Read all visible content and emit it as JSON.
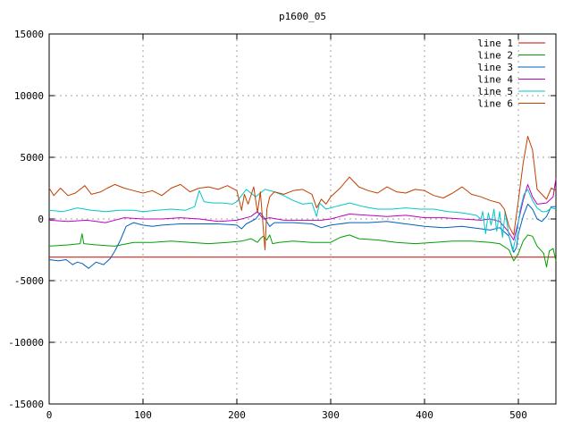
{
  "chart_data": {
    "type": "line",
    "title": "p1600_05",
    "xlabel": "",
    "ylabel": "",
    "xlim": [
      0,
      540
    ],
    "ylim": [
      -15000,
      15000
    ],
    "xticks": [
      0,
      100,
      200,
      300,
      400,
      500
    ],
    "yticks": [
      -15000,
      -10000,
      -5000,
      0,
      5000,
      10000,
      15000
    ],
    "grid": true,
    "legend_position": "top-right",
    "series": [
      {
        "name": "line 1",
        "color": "#d00000",
        "points": [
          [
            0,
            -3100
          ],
          [
            540,
            -3100
          ]
        ]
      },
      {
        "name": "line 2",
        "color": "#00a000",
        "points": [
          [
            0,
            -2200
          ],
          [
            20,
            -2100
          ],
          [
            33,
            -2000
          ],
          [
            35,
            -1200
          ],
          [
            37,
            -2000
          ],
          [
            50,
            -2100
          ],
          [
            70,
            -2200
          ],
          [
            90,
            -1900
          ],
          [
            110,
            -1900
          ],
          [
            130,
            -1800
          ],
          [
            150,
            -1900
          ],
          [
            170,
            -2000
          ],
          [
            190,
            -1900
          ],
          [
            205,
            -1800
          ],
          [
            215,
            -1600
          ],
          [
            222,
            -1900
          ],
          [
            225,
            -1600
          ],
          [
            228,
            -1400
          ],
          [
            232,
            -1700
          ],
          [
            235,
            -1300
          ],
          [
            238,
            -2000
          ],
          [
            245,
            -1900
          ],
          [
            260,
            -1800
          ],
          [
            280,
            -1900
          ],
          [
            300,
            -1900
          ],
          [
            310,
            -1500
          ],
          [
            320,
            -1300
          ],
          [
            330,
            -1600
          ],
          [
            350,
            -1700
          ],
          [
            370,
            -1900
          ],
          [
            390,
            -2000
          ],
          [
            410,
            -1900
          ],
          [
            430,
            -1800
          ],
          [
            450,
            -1800
          ],
          [
            470,
            -1900
          ],
          [
            480,
            -2000
          ],
          [
            490,
            -2500
          ],
          [
            495,
            -3400
          ],
          [
            500,
            -2800
          ],
          [
            505,
            -1800
          ],
          [
            510,
            -1300
          ],
          [
            515,
            -1400
          ],
          [
            520,
            -2200
          ],
          [
            527,
            -2800
          ],
          [
            530,
            -3900
          ],
          [
            533,
            -2600
          ],
          [
            537,
            -2400
          ],
          [
            540,
            -3400
          ]
        ]
      },
      {
        "name": "line 3",
        "color": "#0060c0",
        "points": [
          [
            0,
            -3300
          ],
          [
            10,
            -3400
          ],
          [
            18,
            -3300
          ],
          [
            25,
            -3700
          ],
          [
            30,
            -3500
          ],
          [
            35,
            -3600
          ],
          [
            42,
            -4000
          ],
          [
            50,
            -3500
          ],
          [
            58,
            -3700
          ],
          [
            65,
            -3200
          ],
          [
            70,
            -2600
          ],
          [
            76,
            -1700
          ],
          [
            82,
            -600
          ],
          [
            90,
            -300
          ],
          [
            100,
            -500
          ],
          [
            110,
            -600
          ],
          [
            120,
            -500
          ],
          [
            140,
            -400
          ],
          [
            160,
            -400
          ],
          [
            180,
            -400
          ],
          [
            200,
            -500
          ],
          [
            205,
            -800
          ],
          [
            210,
            -400
          ],
          [
            220,
            0
          ],
          [
            225,
            500
          ],
          [
            230,
            0
          ],
          [
            235,
            -600
          ],
          [
            240,
            -300
          ],
          [
            260,
            -300
          ],
          [
            280,
            -400
          ],
          [
            290,
            -700
          ],
          [
            300,
            -500
          ],
          [
            320,
            -300
          ],
          [
            340,
            -300
          ],
          [
            360,
            -200
          ],
          [
            380,
            -400
          ],
          [
            400,
            -600
          ],
          [
            420,
            -700
          ],
          [
            440,
            -600
          ],
          [
            460,
            -800
          ],
          [
            470,
            -900
          ],
          [
            480,
            -700
          ],
          [
            490,
            -1400
          ],
          [
            495,
            -2700
          ],
          [
            498,
            -2300
          ],
          [
            500,
            -1200
          ],
          [
            505,
            200
          ],
          [
            510,
            1200
          ],
          [
            515,
            800
          ],
          [
            520,
            0
          ],
          [
            525,
            -200
          ],
          [
            530,
            200
          ],
          [
            535,
            1000
          ],
          [
            540,
            1000
          ]
        ]
      },
      {
        "name": "line 4",
        "color": "#c000c0",
        "points": [
          [
            0,
            -100
          ],
          [
            20,
            -200
          ],
          [
            40,
            -100
          ],
          [
            60,
            -300
          ],
          [
            80,
            100
          ],
          [
            100,
            0
          ],
          [
            120,
            0
          ],
          [
            140,
            100
          ],
          [
            160,
            0
          ],
          [
            180,
            -200
          ],
          [
            200,
            -100
          ],
          [
            215,
            200
          ],
          [
            222,
            600
          ],
          [
            228,
            0
          ],
          [
            235,
            100
          ],
          [
            250,
            -100
          ],
          [
            270,
            -100
          ],
          [
            290,
            -100
          ],
          [
            300,
            0
          ],
          [
            310,
            200
          ],
          [
            320,
            400
          ],
          [
            340,
            300
          ],
          [
            360,
            200
          ],
          [
            380,
            300
          ],
          [
            400,
            100
          ],
          [
            420,
            100
          ],
          [
            440,
            0
          ],
          [
            460,
            -100
          ],
          [
            470,
            0
          ],
          [
            480,
            -200
          ],
          [
            488,
            -900
          ],
          [
            495,
            -1700
          ],
          [
            500,
            -200
          ],
          [
            505,
            1500
          ],
          [
            510,
            2800
          ],
          [
            515,
            1800
          ],
          [
            520,
            1200
          ],
          [
            530,
            1300
          ],
          [
            537,
            1800
          ],
          [
            540,
            3300
          ]
        ]
      },
      {
        "name": "line 5",
        "color": "#00c8c8",
        "points": [
          [
            0,
            700
          ],
          [
            15,
            600
          ],
          [
            30,
            900
          ],
          [
            45,
            700
          ],
          [
            60,
            600
          ],
          [
            75,
            700
          ],
          [
            90,
            700
          ],
          [
            100,
            600
          ],
          [
            115,
            700
          ],
          [
            130,
            800
          ],
          [
            145,
            700
          ],
          [
            155,
            1000
          ],
          [
            160,
            2300
          ],
          [
            165,
            1400
          ],
          [
            175,
            1300
          ],
          [
            185,
            1300
          ],
          [
            195,
            1200
          ],
          [
            200,
            1400
          ],
          [
            210,
            2400
          ],
          [
            220,
            1800
          ],
          [
            230,
            2400
          ],
          [
            240,
            2200
          ],
          [
            250,
            1900
          ],
          [
            260,
            1500
          ],
          [
            270,
            1200
          ],
          [
            280,
            1300
          ],
          [
            285,
            200
          ],
          [
            288,
            1300
          ],
          [
            295,
            800
          ],
          [
            305,
            1000
          ],
          [
            320,
            1300
          ],
          [
            335,
            1000
          ],
          [
            350,
            800
          ],
          [
            365,
            800
          ],
          [
            380,
            900
          ],
          [
            395,
            800
          ],
          [
            410,
            800
          ],
          [
            425,
            600
          ],
          [
            440,
            500
          ],
          [
            455,
            300
          ],
          [
            460,
            0
          ],
          [
            462,
            600
          ],
          [
            465,
            -1200
          ],
          [
            468,
            500
          ],
          [
            471,
            -500
          ],
          [
            474,
            800
          ],
          [
            477,
            -1000
          ],
          [
            480,
            600
          ],
          [
            483,
            -1500
          ],
          [
            486,
            600
          ],
          [
            490,
            -1400
          ],
          [
            494,
            -2600
          ],
          [
            498,
            -1300
          ],
          [
            502,
            800
          ],
          [
            506,
            2000
          ],
          [
            510,
            2400
          ],
          [
            515,
            1500
          ],
          [
            520,
            900
          ],
          [
            525,
            600
          ],
          [
            530,
            600
          ],
          [
            535,
            900
          ],
          [
            540,
            800
          ]
        ]
      },
      {
        "name": "line 6",
        "color": "#c04000",
        "points": [
          [
            0,
            2500
          ],
          [
            5,
            1900
          ],
          [
            12,
            2500
          ],
          [
            20,
            1900
          ],
          [
            28,
            2100
          ],
          [
            38,
            2700
          ],
          [
            45,
            2000
          ],
          [
            55,
            2200
          ],
          [
            62,
            2500
          ],
          [
            70,
            2800
          ],
          [
            80,
            2500
          ],
          [
            90,
            2300
          ],
          [
            100,
            2100
          ],
          [
            110,
            2300
          ],
          [
            120,
            1900
          ],
          [
            130,
            2500
          ],
          [
            140,
            2800
          ],
          [
            150,
            2200
          ],
          [
            160,
            2500
          ],
          [
            170,
            2600
          ],
          [
            180,
            2400
          ],
          [
            190,
            2700
          ],
          [
            200,
            2300
          ],
          [
            205,
            700
          ],
          [
            208,
            2000
          ],
          [
            212,
            1200
          ],
          [
            218,
            2600
          ],
          [
            222,
            500
          ],
          [
            225,
            2200
          ],
          [
            230,
            -2500
          ],
          [
            232,
            800
          ],
          [
            235,
            1800
          ],
          [
            240,
            2200
          ],
          [
            250,
            2000
          ],
          [
            260,
            2300
          ],
          [
            270,
            2400
          ],
          [
            280,
            2000
          ],
          [
            285,
            900
          ],
          [
            290,
            1600
          ],
          [
            295,
            1200
          ],
          [
            300,
            1800
          ],
          [
            310,
            2500
          ],
          [
            320,
            3400
          ],
          [
            330,
            2600
          ],
          [
            340,
            2300
          ],
          [
            350,
            2100
          ],
          [
            360,
            2600
          ],
          [
            370,
            2200
          ],
          [
            380,
            2100
          ],
          [
            390,
            2400
          ],
          [
            400,
            2300
          ],
          [
            410,
            1900
          ],
          [
            420,
            1700
          ],
          [
            430,
            2100
          ],
          [
            440,
            2600
          ],
          [
            450,
            2000
          ],
          [
            460,
            1800
          ],
          [
            470,
            1500
          ],
          [
            480,
            1300
          ],
          [
            485,
            800
          ],
          [
            490,
            -600
          ],
          [
            495,
            -1300
          ],
          [
            500,
            1500
          ],
          [
            505,
            4500
          ],
          [
            510,
            6700
          ],
          [
            515,
            5600
          ],
          [
            520,
            2400
          ],
          [
            525,
            2000
          ],
          [
            530,
            1600
          ],
          [
            535,
            2500
          ],
          [
            540,
            2300
          ]
        ]
      }
    ]
  }
}
